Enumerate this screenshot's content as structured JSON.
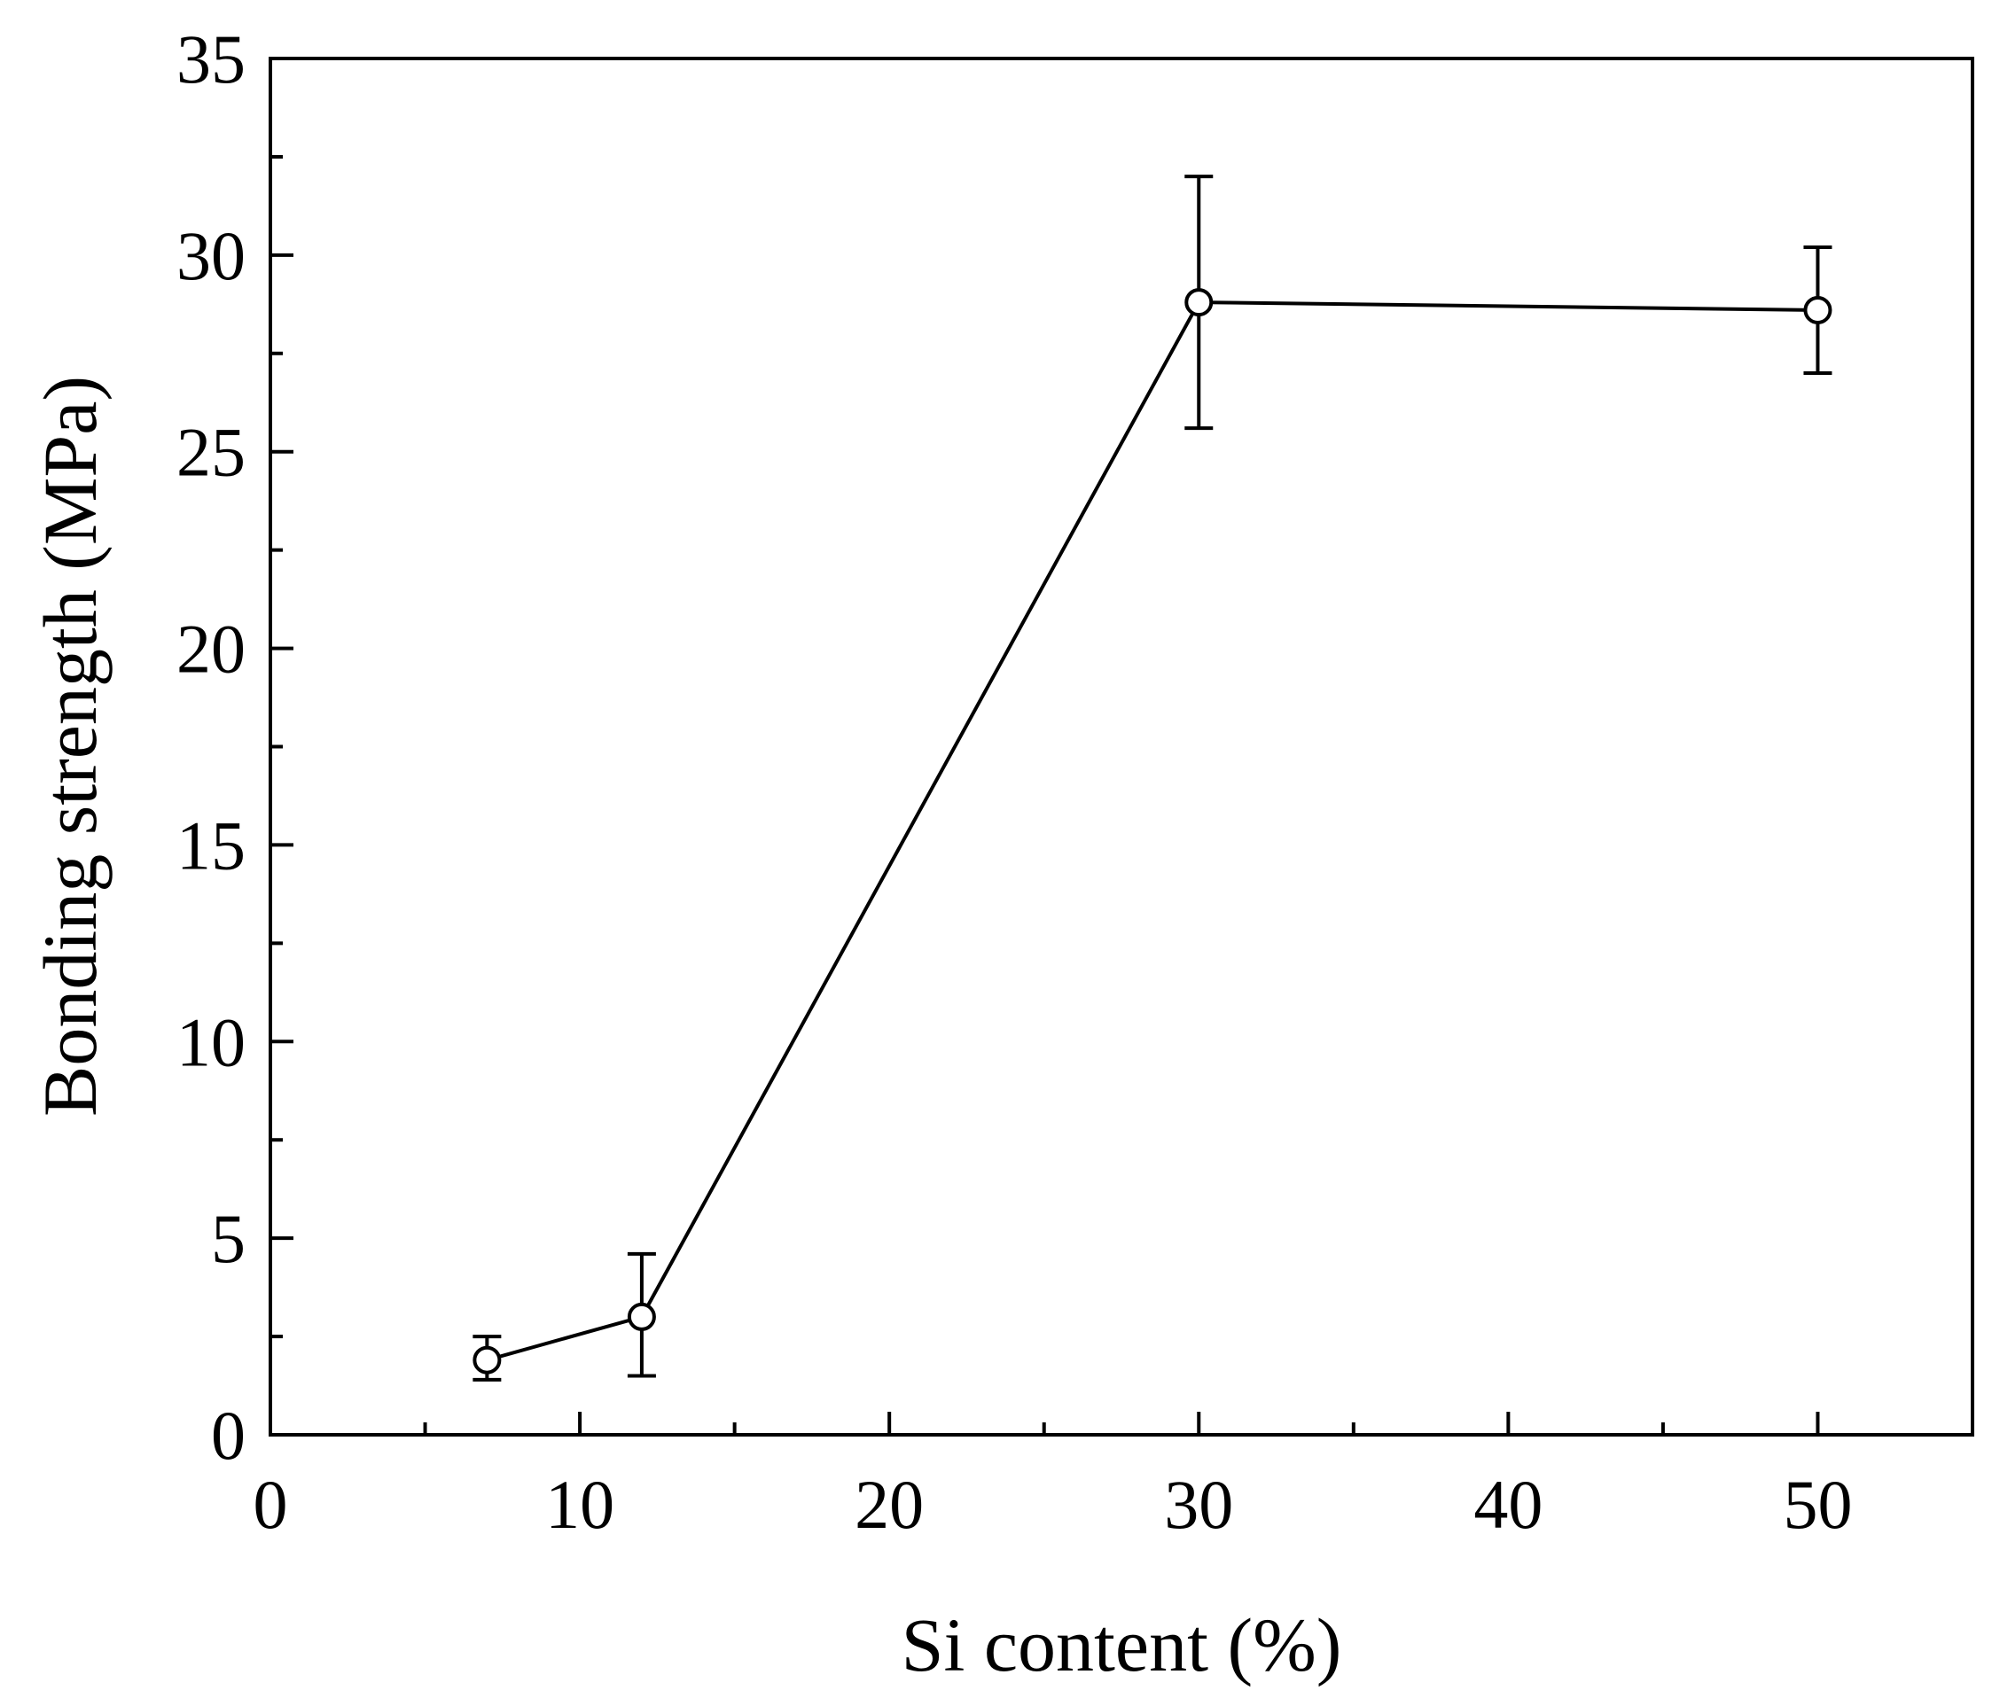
{
  "chart_data": {
    "type": "scatter",
    "mode": "lines+markers",
    "title": "",
    "xlabel": "Si content (%)",
    "ylabel": "Bonding strength (MPa)",
    "xlim": [
      0,
      55
    ],
    "ylim": [
      0,
      35
    ],
    "x_major_ticks": [
      0,
      10,
      20,
      30,
      40,
      50
    ],
    "x_minor_ticks": [
      5,
      15,
      25,
      35,
      45
    ],
    "x_tick_labels": [
      "0",
      "10",
      "20",
      "30",
      "40",
      "50"
    ],
    "y_major_ticks": [
      0,
      5,
      10,
      15,
      20,
      25,
      30,
      35
    ],
    "y_minor_ticks": [
      2.5,
      7.5,
      12.5,
      17.5,
      22.5,
      27.5,
      32.5
    ],
    "y_tick_labels": [
      "0",
      "5",
      "10",
      "15",
      "20",
      "25",
      "30",
      "35"
    ],
    "grid": false,
    "legend": false,
    "marker": "open-circle",
    "line_color": "#000000",
    "series": [
      {
        "x": [
          7,
          12,
          30,
          50
        ],
        "y": [
          1.9,
          3.0,
          28.8,
          28.6
        ],
        "y_err_low": [
          1.4,
          1.5,
          25.6,
          27.0
        ],
        "y_err_high": [
          2.5,
          4.6,
          32.0,
          30.2
        ]
      }
    ]
  }
}
